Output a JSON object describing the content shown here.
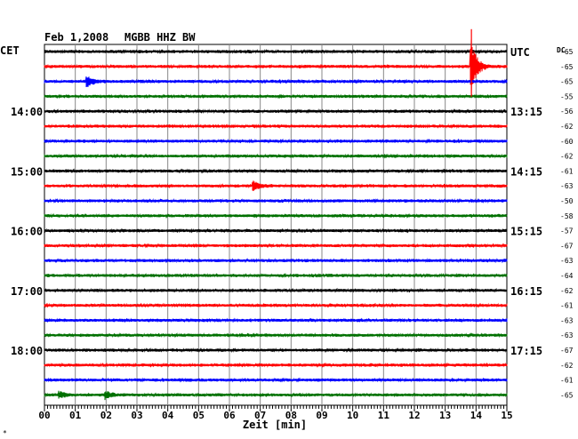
{
  "header": {
    "date": "Feb 1,2008",
    "station": "MGBB HHZ BW",
    "left_label": "CET",
    "right_label": "UTC",
    "dc_label": "DC"
  },
  "xaxis": {
    "title": "Zeit [min]",
    "ticks": [
      "00",
      "01",
      "02",
      "03",
      "04",
      "05",
      "06",
      "07",
      "08",
      "09",
      "10",
      "11",
      "12",
      "13",
      "14",
      "15"
    ]
  },
  "footer_mark": "*",
  "chart_data": {
    "type": "line",
    "title": "Feb 1,2008   MGBB HHZ BW",
    "xlabel": "Zeit [min]",
    "ylabel": "",
    "xlim": [
      0,
      15
    ],
    "trace_colors": [
      "#000000",
      "#ff0000",
      "#0000ff",
      "#007000"
    ],
    "left_hour_labels": [
      {
        "trace": 4,
        "label": "14:00"
      },
      {
        "trace": 8,
        "label": "15:00"
      },
      {
        "trace": 12,
        "label": "16:00"
      },
      {
        "trace": 16,
        "label": "17:00"
      },
      {
        "trace": 20,
        "label": "18:00"
      }
    ],
    "right_hour_labels": [
      {
        "trace": 0,
        "label": "UTC"
      },
      {
        "trace": 4,
        "label": "13:15"
      },
      {
        "trace": 8,
        "label": "14:15"
      },
      {
        "trace": 12,
        "label": "15:15"
      },
      {
        "trace": 16,
        "label": "16:15"
      },
      {
        "trace": 20,
        "label": "17:15"
      }
    ],
    "dc_offsets": [
      "-65",
      "-65",
      "-65",
      "-55",
      "-56",
      "-62",
      "-60",
      "-62",
      "-61",
      "-63",
      "-50",
      "-58",
      "-57",
      "-67",
      "-63",
      "-64",
      "-62",
      "-61",
      "-63",
      "-63",
      "-67",
      "-62",
      "-61",
      "-65"
    ],
    "events": [
      {
        "trace": 1,
        "minute": 13.85,
        "amplitude": 1.0
      },
      {
        "trace": 2,
        "minute": 1.4,
        "amplitude": 0.18
      },
      {
        "trace": 9,
        "minute": 6.8,
        "amplitude": 0.15
      },
      {
        "trace": 23,
        "minute": 2.0,
        "amplitude": 0.14
      },
      {
        "trace": 23,
        "minute": 0.5,
        "amplitude": 0.12
      }
    ]
  }
}
